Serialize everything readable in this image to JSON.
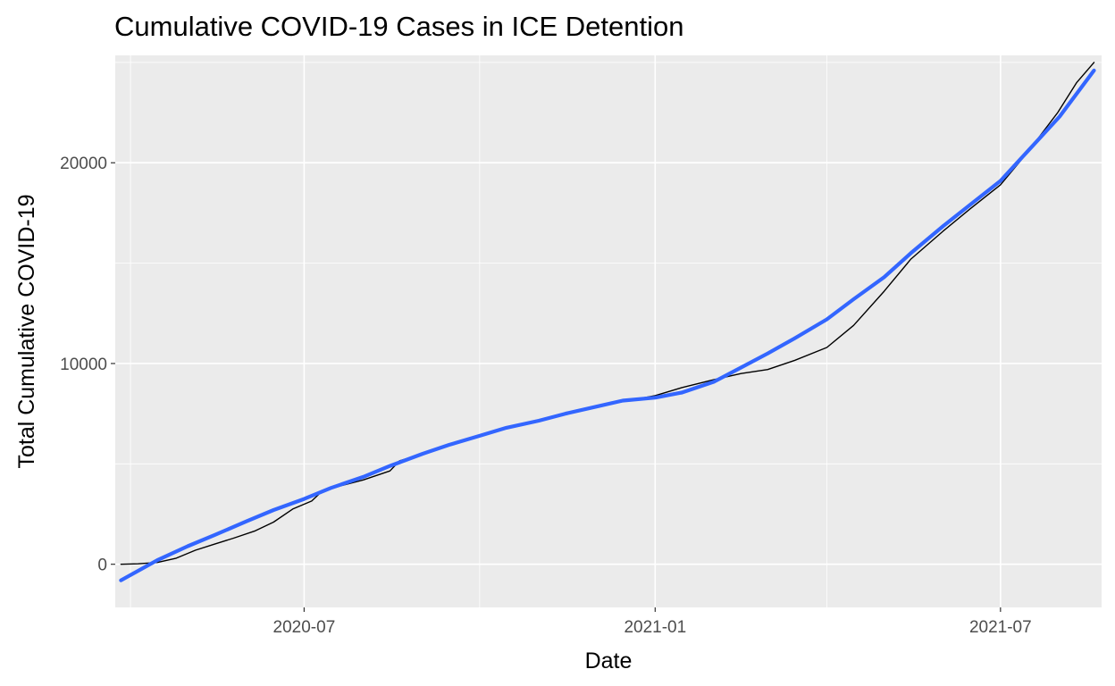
{
  "chart_data": {
    "type": "line",
    "title": "Cumulative COVID-19 Cases in ICE Detention",
    "xlabel": "Date",
    "ylabel": "Total Cumulative COVID-19",
    "xlim": [
      "2020-03-24",
      "2021-08-23"
    ],
    "ylim": [
      -2150,
      25350
    ],
    "x_ticks": [
      {
        "date": "2020-07-01",
        "label": "2020-07"
      },
      {
        "date": "2021-01-01",
        "label": "2021-01"
      },
      {
        "date": "2021-07-01",
        "label": "2021-07"
      }
    ],
    "x_minor_ticks": [
      "2020-04-01",
      "2020-10-01",
      "2021-04-01"
    ],
    "y_ticks": [
      0,
      10000,
      20000
    ],
    "y_tick_labels": [
      "0",
      "10000",
      "20000"
    ],
    "y_minor_ticks": [
      5000,
      15000,
      25000
    ],
    "grid": true,
    "background": "#ebebeb",
    "series": [
      {
        "role": "observed",
        "color": "#000000",
        "points": [
          [
            "2020-03-27",
            0
          ],
          [
            "2020-04-05",
            20
          ],
          [
            "2020-04-15",
            90
          ],
          [
            "2020-04-25",
            300
          ],
          [
            "2020-05-05",
            700
          ],
          [
            "2020-05-15",
            1000
          ],
          [
            "2020-05-25",
            1300
          ],
          [
            "2020-06-05",
            1650
          ],
          [
            "2020-06-15",
            2100
          ],
          [
            "2020-06-25",
            2750
          ],
          [
            "2020-07-05",
            3150
          ],
          [
            "2020-07-10",
            3600
          ],
          [
            "2020-07-20",
            3900
          ],
          [
            "2020-08-01",
            4200
          ],
          [
            "2020-08-15",
            4650
          ],
          [
            "2020-08-20",
            5150
          ],
          [
            "2020-09-01",
            5500
          ],
          [
            "2020-09-15",
            5900
          ],
          [
            "2020-10-01",
            6400
          ],
          [
            "2020-10-15",
            6750
          ],
          [
            "2020-11-01",
            7100
          ],
          [
            "2020-11-15",
            7500
          ],
          [
            "2020-12-01",
            7850
          ],
          [
            "2020-12-15",
            8100
          ],
          [
            "2021-01-01",
            8400
          ],
          [
            "2021-01-15",
            8800
          ],
          [
            "2021-02-01",
            9200
          ],
          [
            "2021-02-15",
            9500
          ],
          [
            "2021-03-01",
            9700
          ],
          [
            "2021-03-15",
            10150
          ],
          [
            "2021-04-01",
            10800
          ],
          [
            "2021-04-15",
            11900
          ],
          [
            "2021-05-01",
            13600
          ],
          [
            "2021-05-15",
            15200
          ],
          [
            "2021-06-01",
            16600
          ],
          [
            "2021-06-15",
            17700
          ],
          [
            "2021-07-01",
            18900
          ],
          [
            "2021-07-15",
            20500
          ],
          [
            "2021-07-31",
            22500
          ],
          [
            "2021-08-10",
            24000
          ],
          [
            "2021-08-19",
            25000
          ]
        ]
      },
      {
        "role": "smoothed trend",
        "color": "#3366ff",
        "points": [
          [
            "2020-03-27",
            -800
          ],
          [
            "2020-04-15",
            200
          ],
          [
            "2020-05-01",
            900
          ],
          [
            "2020-05-15",
            1450
          ],
          [
            "2020-06-01",
            2150
          ],
          [
            "2020-06-15",
            2700
          ],
          [
            "2020-07-01",
            3250
          ],
          [
            "2020-07-15",
            3800
          ],
          [
            "2020-08-01",
            4350
          ],
          [
            "2020-08-15",
            4900
          ],
          [
            "2020-09-01",
            5500
          ],
          [
            "2020-09-15",
            5950
          ],
          [
            "2020-10-01",
            6400
          ],
          [
            "2020-10-15",
            6800
          ],
          [
            "2020-11-01",
            7150
          ],
          [
            "2020-11-15",
            7500
          ],
          [
            "2020-12-01",
            7850
          ],
          [
            "2020-12-15",
            8150
          ],
          [
            "2021-01-01",
            8300
          ],
          [
            "2021-01-15",
            8550
          ],
          [
            "2021-02-01",
            9100
          ],
          [
            "2021-02-15",
            9800
          ],
          [
            "2021-03-01",
            10500
          ],
          [
            "2021-03-15",
            11250
          ],
          [
            "2021-04-01",
            12200
          ],
          [
            "2021-04-15",
            13200
          ],
          [
            "2021-05-01",
            14300
          ],
          [
            "2021-05-15",
            15500
          ],
          [
            "2021-06-01",
            16850
          ],
          [
            "2021-06-15",
            17900
          ],
          [
            "2021-07-01",
            19100
          ],
          [
            "2021-07-15",
            20550
          ],
          [
            "2021-08-01",
            22300
          ],
          [
            "2021-08-19",
            24600
          ]
        ]
      }
    ]
  }
}
